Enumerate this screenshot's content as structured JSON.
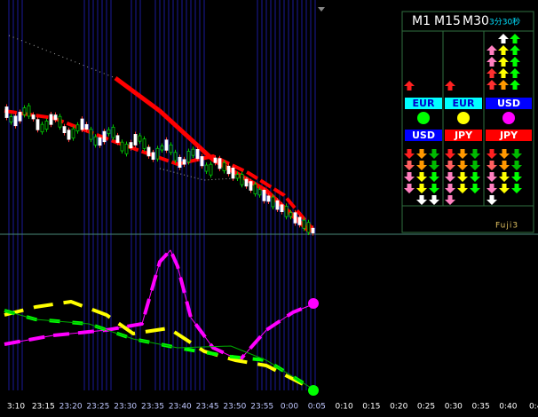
{
  "panel": {
    "timeframes": [
      "M1",
      "M15",
      "M30"
    ],
    "timer": "3分30秒",
    "base": [
      "EUR",
      "EUR",
      "USD"
    ],
    "quote": [
      "USD",
      "JPY",
      "JPY"
    ],
    "label": "Fuji3"
  },
  "time_axis": [
    "3:10",
    "23:15",
    "23:20",
    "23:25",
    "23:30",
    "23:35",
    "23:40",
    "23:45",
    "23:50",
    "23:55",
    "0:00",
    "0:05",
    "0:10",
    "0:15",
    "0:20",
    "0:25",
    "0:30",
    "0:35",
    "0:40",
    "0:4"
  ]
}
